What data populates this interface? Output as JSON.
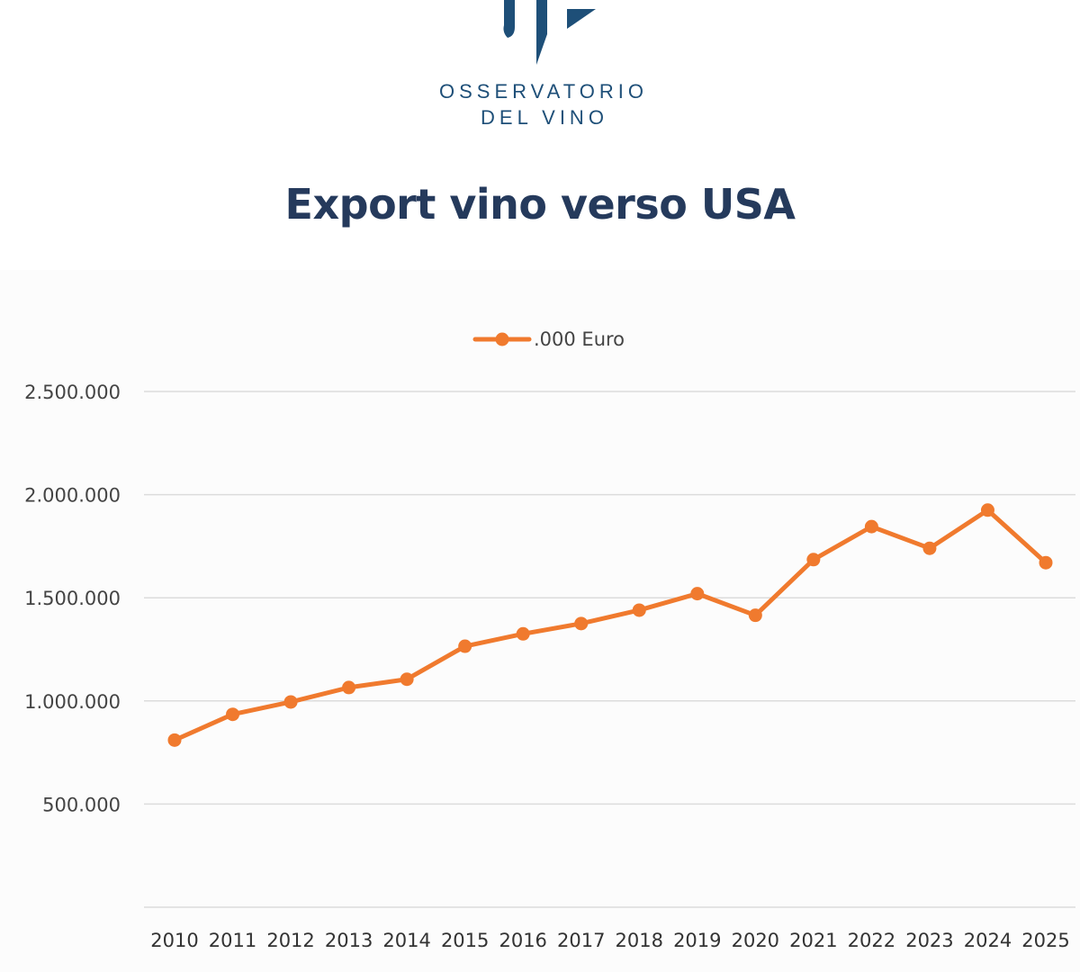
{
  "logo": {
    "line1": "OSSERVATORIO",
    "line2": "DEL VINO",
    "color": "#1e4f78"
  },
  "title": "Export vino verso USA",
  "chart_data": {
    "type": "line",
    "categories": [
      "2010",
      "2011",
      "2012",
      "2013",
      "2014",
      "2015",
      "2016",
      "2017",
      "2018",
      "2019",
      "2020",
      "2021",
      "2022",
      "2023",
      "2024",
      "2025"
    ],
    "series": [
      {
        "name": ".000 Euro",
        "color": "#f07a2e",
        "values": [
          810000,
          935000,
          995000,
          1065000,
          1105000,
          1265000,
          1325000,
          1375000,
          1440000,
          1520000,
          1415000,
          1685000,
          1845000,
          1740000,
          1925000,
          1670000
        ]
      }
    ],
    "y_ticks": [
      "500.000",
      "1.000.000",
      "1.500.000",
      "2.000.000",
      "2.500.000"
    ],
    "ylim": [
      0,
      2500000
    ],
    "grid": true,
    "legend_position": "top-center"
  }
}
